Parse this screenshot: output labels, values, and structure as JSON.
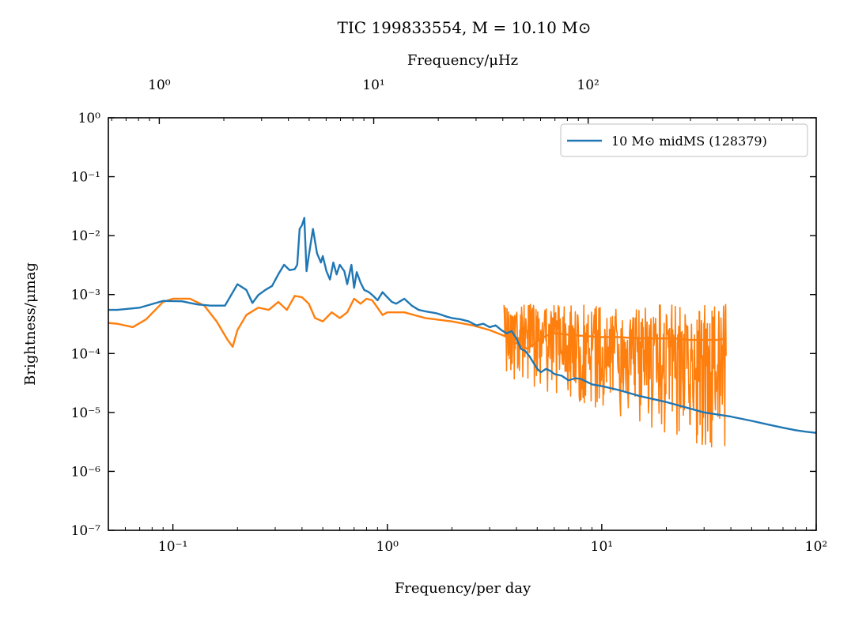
{
  "chart_data": {
    "type": "line",
    "title": "TIC 199833554, M = 10.10 M⊙",
    "xlabel": "Frequency/per day",
    "ylabel": "Brightness/μmag",
    "x2label": "Frequency/μHz",
    "xscale": "log",
    "yscale": "log",
    "xlim": [
      0.05,
      100
    ],
    "ylim": [
      1e-07,
      1
    ],
    "x2lim": [
      0.5787,
      1157.4
    ],
    "grid": false,
    "legend": {
      "placement": "top-right",
      "entries": [
        "10 M⊙ midMS (128379)"
      ]
    },
    "x_ticks": [
      {
        "value": 0.1,
        "label": "10⁻¹"
      },
      {
        "value": 1,
        "label": "10⁰"
      },
      {
        "value": 10,
        "label": "10¹"
      },
      {
        "value": 100,
        "label": "10²"
      }
    ],
    "x2_ticks": [
      {
        "value": 1,
        "label": "10⁰"
      },
      {
        "value": 10,
        "label": "10¹"
      },
      {
        "value": 100,
        "label": "10²"
      }
    ],
    "y_ticks": [
      {
        "value": 1,
        "label": "10⁰"
      },
      {
        "value": 0.1,
        "label": "10⁻¹"
      },
      {
        "value": 0.01,
        "label": "10⁻²"
      },
      {
        "value": 0.001,
        "label": "10⁻³"
      },
      {
        "value": 0.0001,
        "label": "10⁻⁴"
      },
      {
        "value": 1e-05,
        "label": "10⁻⁵"
      },
      {
        "value": 1e-06,
        "label": "10⁻⁶"
      },
      {
        "value": 1e-07,
        "label": "10⁻⁷"
      }
    ],
    "series": [
      {
        "name": "10 M⊙ midMS (128379)",
        "color": "#1f77b4",
        "x": [
          0.05,
          0.055,
          0.07,
          0.09,
          0.11,
          0.13,
          0.15,
          0.175,
          0.2,
          0.22,
          0.235,
          0.25,
          0.27,
          0.29,
          0.31,
          0.33,
          0.35,
          0.37,
          0.38,
          0.39,
          0.4,
          0.41,
          0.415,
          0.42,
          0.43,
          0.45,
          0.47,
          0.49,
          0.5,
          0.52,
          0.54,
          0.56,
          0.58,
          0.6,
          0.63,
          0.65,
          0.68,
          0.7,
          0.72,
          0.75,
          0.78,
          0.82,
          0.86,
          0.9,
          0.95,
          1.0,
          1.05,
          1.1,
          1.2,
          1.3,
          1.4,
          1.5,
          1.6,
          1.7,
          1.8,
          1.9,
          2.0,
          2.2,
          2.4,
          2.6,
          2.8,
          3.0,
          3.2,
          3.4,
          3.6,
          3.8,
          4.0,
          4.2,
          4.4,
          4.6,
          4.8,
          5.0,
          5.2,
          5.5,
          5.8,
          6.0,
          6.5,
          7.0,
          7.5,
          8.0,
          9.0,
          10.0,
          12.0,
          15.0,
          20.0,
          25.0,
          30.0,
          40.0,
          50.0,
          60.0,
          70.0,
          80.0,
          90.0,
          100.0
        ],
        "y": [
          0.00055,
          0.00055,
          0.0006,
          0.00078,
          0.00077,
          0.00068,
          0.00065,
          0.00065,
          0.0015,
          0.0012,
          0.00072,
          0.00098,
          0.0012,
          0.0014,
          0.0022,
          0.0032,
          0.0026,
          0.0027,
          0.0032,
          0.013,
          0.015,
          0.02,
          0.007,
          0.0025,
          0.0045,
          0.013,
          0.005,
          0.0035,
          0.0045,
          0.0025,
          0.0018,
          0.0035,
          0.0022,
          0.0032,
          0.0025,
          0.0015,
          0.0032,
          0.0013,
          0.0024,
          0.0016,
          0.0012,
          0.0011,
          0.00095,
          0.0008,
          0.0011,
          0.0009,
          0.00075,
          0.0007,
          0.00085,
          0.00065,
          0.00055,
          0.00052,
          0.0005,
          0.00048,
          0.00045,
          0.00042,
          0.0004,
          0.00038,
          0.00035,
          0.0003,
          0.00032,
          0.00028,
          0.0003,
          0.00025,
          0.00022,
          0.00024,
          0.00018,
          0.00012,
          0.00011,
          9e-05,
          7e-05,
          5.5e-05,
          4.8e-05,
          5.5e-05,
          5e-05,
          4.5e-05,
          4.2e-05,
          3.5e-05,
          3.8e-05,
          3.7e-05,
          3e-05,
          2.8e-05,
          2.4e-05,
          1.9e-05,
          1.5e-05,
          1.2e-05,
          1e-05,
          8.5e-06,
          7.2e-06,
          6.2e-06,
          5.5e-06,
          5e-06,
          4.7e-06,
          4.5e-06
        ]
      },
      {
        "color": "#ff7f0e",
        "x": [
          0.05,
          0.055,
          0.065,
          0.075,
          0.09,
          0.1,
          0.12,
          0.14,
          0.16,
          0.18,
          0.19,
          0.2,
          0.22,
          0.25,
          0.28,
          0.31,
          0.34,
          0.37,
          0.4,
          0.43,
          0.46,
          0.5,
          0.55,
          0.6,
          0.65,
          0.7,
          0.75,
          0.8,
          0.85,
          0.9,
          0.95,
          1.0,
          1.2,
          1.5,
          2.0,
          2.5,
          3.0,
          3.5,
          4.0,
          4.5,
          5.0,
          5.5,
          6.0,
          7.0,
          8.0,
          10.0,
          12.0,
          15.0,
          18.0,
          22.0,
          25.0,
          30.0,
          35.0,
          38.0
        ],
        "y": [
          0.00033,
          0.00032,
          0.00028,
          0.00038,
          0.00075,
          0.00085,
          0.00085,
          0.00065,
          0.00035,
          0.00017,
          0.00013,
          0.00025,
          0.00045,
          0.0006,
          0.00055,
          0.00075,
          0.00055,
          0.00095,
          0.0009,
          0.0007,
          0.0004,
          0.00035,
          0.0005,
          0.0004,
          0.0005,
          0.00085,
          0.0007,
          0.00085,
          0.0008,
          0.0006,
          0.00045,
          0.0005,
          0.0005,
          0.0004,
          0.00035,
          0.0003,
          0.00025,
          0.0002,
          0.00015,
          0.00012,
          0.00016,
          0.0002,
          0.00022,
          0.00021,
          0.0002,
          0.00019,
          0.00019,
          0.00018,
          0.00018,
          0.00018,
          0.00017,
          0.00017,
          0.00017,
          0.00018
        ],
        "noise_envelope": {
          "from_x": 3.5,
          "to_x": 38,
          "upper": [
            0.0007,
            0.0007
          ],
          "lower": [
            4e-05,
            2e-06
          ]
        }
      }
    ]
  }
}
